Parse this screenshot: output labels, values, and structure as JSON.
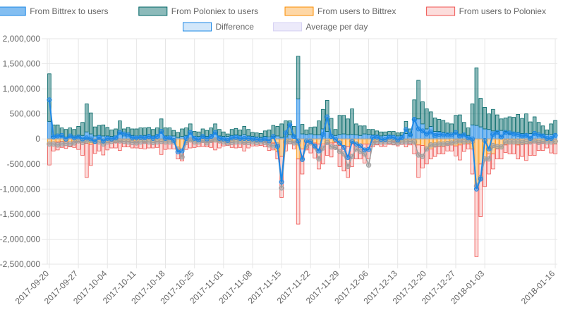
{
  "chart_data": {
    "type": "bar",
    "stacked": true,
    "legend_position": "top",
    "grid": true,
    "ylim": [
      -2500000,
      2000000
    ],
    "y_ticks": [
      2000000,
      1500000,
      1000000,
      500000,
      0,
      -500000,
      -1000000,
      -1500000,
      -2000000,
      -2500000
    ],
    "y_tick_labels": [
      "2,000,000",
      "1,500,000",
      "1,000,000",
      "500,000",
      "0",
      "-500,000",
      "-1,000,000",
      "-1,500,000",
      "-2,000,000",
      "-2,500,000"
    ],
    "x_tick_labels": [
      "2017-09-20",
      "2017-09-27",
      "2017-10-04",
      "2017-10-11",
      "2017-10-18",
      "2017-10-25",
      "2017-11-01",
      "2017-11-08",
      "2017-11-15",
      "2017-11-22",
      "2017-11-29",
      "2017-12-06",
      "2017-12-13",
      "2017-12-20",
      "2017-12-27",
      "2018-01-03",
      "2018-01-16"
    ],
    "start_date": "2017-09-20",
    "series": [
      {
        "name": "From Bittrex to users",
        "type": "bar",
        "color": "#1e88e5",
        "values": [
          350000,
          50000,
          60000,
          50000,
          40000,
          50000,
          40000,
          60000,
          70000,
          140000,
          100000,
          60000,
          70000,
          60000,
          60000,
          50000,
          60000,
          110000,
          60000,
          90000,
          70000,
          60000,
          60000,
          70000,
          80000,
          60000,
          80000,
          120000,
          60000,
          60000,
          60000,
          30000,
          50000,
          70000,
          90000,
          50000,
          50000,
          60000,
          50000,
          80000,
          90000,
          60000,
          50000,
          50000,
          70000,
          80000,
          70000,
          90000,
          60000,
          50000,
          40000,
          30000,
          50000,
          40000,
          50000,
          60000,
          30000,
          40000,
          80000,
          60000,
          800000,
          100000,
          90000,
          100000,
          80000,
          80000,
          200000,
          150000,
          90000,
          70000,
          90000,
          100000,
          80000,
          90000,
          80000,
          70000,
          100000,
          90000,
          80000,
          70000,
          60000,
          70000,
          70000,
          70000,
          60000,
          70000,
          110000,
          60000,
          370000,
          400000,
          300000,
          200000,
          250000,
          150000,
          150000,
          130000,
          110000,
          90000,
          100000,
          90000,
          100000,
          70000,
          280000,
          270000,
          240000,
          200000,
          190000,
          160000,
          150000,
          170000,
          150000,
          100000,
          130000,
          120000,
          110000,
          100000,
          110000,
          100000,
          90000,
          90000,
          90000,
          90000,
          100000
        ]
      },
      {
        "name": "From Poloniex to users",
        "type": "bar",
        "color": "#006666",
        "values": [
          950000,
          230000,
          220000,
          170000,
          150000,
          170000,
          150000,
          190000,
          260000,
          560000,
          420000,
          180000,
          200000,
          220000,
          170000,
          130000,
          140000,
          250000,
          140000,
          140000,
          130000,
          140000,
          160000,
          150000,
          150000,
          130000,
          140000,
          280000,
          160000,
          160000,
          110000,
          100000,
          150000,
          150000,
          210000,
          100000,
          90000,
          140000,
          120000,
          140000,
          210000,
          130000,
          90000,
          50000,
          120000,
          130000,
          110000,
          160000,
          130000,
          80000,
          80000,
          80000,
          110000,
          140000,
          220000,
          190000,
          270000,
          320000,
          280000,
          190000,
          850000,
          190000,
          90000,
          130000,
          160000,
          280000,
          390000,
          620000,
          320000,
          120000,
          380000,
          370000,
          320000,
          510000,
          220000,
          190000,
          160000,
          100000,
          110000,
          90000,
          80000,
          70000,
          80000,
          80000,
          60000,
          60000,
          240000,
          140000,
          410000,
          770000,
          440000,
          400000,
          290000,
          270000,
          240000,
          240000,
          210000,
          210000,
          370000,
          390000,
          230000,
          150000,
          420000,
          1150000,
          570000,
          430000,
          310000,
          430000,
          330000,
          230000,
          270000,
          340000,
          300000,
          370000,
          300000,
          400000,
          230000,
          340000,
          240000,
          170000,
          90000,
          210000,
          270000
        ]
      },
      {
        "name": "From users to Bittrex",
        "type": "bar",
        "color": "#fb8c00",
        "values": [
          -100000,
          -60000,
          -60000,
          -50000,
          -60000,
          -60000,
          -50000,
          -60000,
          -70000,
          -90000,
          -110000,
          -90000,
          -60000,
          -80000,
          -70000,
          -60000,
          -70000,
          -60000,
          -60000,
          -50000,
          -60000,
          -60000,
          -60000,
          -70000,
          -60000,
          -70000,
          -50000,
          -60000,
          -60000,
          -60000,
          -60000,
          -200000,
          -200000,
          -70000,
          -60000,
          -60000,
          -60000,
          -50000,
          -60000,
          -50000,
          -60000,
          -60000,
          -60000,
          -70000,
          -60000,
          -60000,
          -60000,
          -80000,
          -60000,
          -60000,
          -60000,
          -60000,
          -60000,
          -80000,
          -80000,
          -250000,
          -350000,
          -60000,
          -60000,
          -60000,
          -400000,
          -200000,
          -70000,
          -80000,
          -80000,
          -100000,
          -100000,
          -80000,
          -80000,
          -70000,
          -130000,
          -140000,
          -150000,
          -100000,
          -100000,
          -100000,
          -100000,
          -100000,
          -60000,
          -50000,
          -60000,
          -60000,
          -50000,
          -50000,
          -60000,
          -60000,
          -60000,
          -60000,
          -100000,
          -120000,
          -130000,
          -200000,
          -200000,
          -150000,
          -150000,
          -150000,
          -120000,
          -120000,
          -140000,
          -120000,
          -100000,
          -100000,
          -200000,
          -900000,
          -500000,
          -400000,
          -300000,
          -300000,
          -200000,
          -200000,
          -120000,
          -100000,
          -100000,
          -120000,
          -100000,
          -100000,
          -80000,
          -80000,
          -80000,
          -80000,
          -60000,
          -60000,
          -100000
        ]
      },
      {
        "name": "From users to Poloniex",
        "type": "bar",
        "color": "#ef5350",
        "values": [
          -420000,
          -180000,
          -160000,
          -120000,
          -130000,
          -100000,
          -120000,
          -150000,
          -260000,
          -680000,
          -420000,
          -200000,
          -180000,
          -240000,
          -150000,
          -120000,
          -110000,
          -170000,
          -100000,
          -110000,
          -120000,
          -120000,
          -130000,
          -130000,
          -120000,
          -110000,
          -120000,
          -250000,
          -150000,
          -140000,
          -140000,
          -200000,
          -240000,
          -140000,
          -120000,
          -110000,
          -100000,
          -100000,
          -100000,
          -120000,
          -160000,
          -120000,
          -80000,
          -60000,
          -110000,
          -120000,
          -110000,
          -160000,
          -120000,
          -80000,
          -80000,
          -70000,
          -100000,
          -150000,
          -140000,
          -150000,
          -820000,
          -180000,
          -40000,
          -140000,
          -1300000,
          -500000,
          -150000,
          -200000,
          -300000,
          -500000,
          -400000,
          -250000,
          -280000,
          -130000,
          -420000,
          -500000,
          -620000,
          -450000,
          -300000,
          -300000,
          -380000,
          -300000,
          -100000,
          -70000,
          -90000,
          -90000,
          -60000,
          -70000,
          -80000,
          -50000,
          -100000,
          -60000,
          -200000,
          -650000,
          -450000,
          -300000,
          -200000,
          -200000,
          -150000,
          -150000,
          -120000,
          -120000,
          -200000,
          -300000,
          -150000,
          -100000,
          -500000,
          -1450000,
          -1050000,
          -550000,
          -400000,
          -300000,
          -200000,
          -200000,
          -150000,
          -200000,
          -200000,
          -280000,
          -250000,
          -330000,
          -250000,
          -250000,
          -150000,
          -150000,
          -120000,
          -220000,
          -200000
        ]
      },
      {
        "name": "Difference",
        "type": "line",
        "color": "#1e88e5",
        "values": [
          780000,
          40000,
          60000,
          70000,
          0,
          60000,
          20000,
          40000,
          0,
          20000,
          0,
          -50000,
          30000,
          -40000,
          10000,
          0,
          20000,
          130000,
          100000,
          80000,
          20000,
          20000,
          30000,
          20000,
          50000,
          10000,
          50000,
          150000,
          10000,
          20000,
          -30000,
          -260000,
          -240000,
          10000,
          130000,
          10000,
          -20000,
          50000,
          0,
          50000,
          130000,
          10000,
          0,
          -30000,
          20000,
          30000,
          10000,
          10000,
          10000,
          0,
          -10000,
          -20000,
          0,
          -40000,
          50000,
          -150000,
          -860000,
          120000,
          280000,
          50000,
          -40000,
          -410000,
          -40000,
          -50000,
          -140000,
          -240000,
          90000,
          440000,
          50000,
          -10000,
          -80000,
          -170000,
          -370000,
          -50000,
          -100000,
          -140000,
          -220000,
          -210000,
          30000,
          40000,
          -10000,
          -10000,
          40000,
          30000,
          -20000,
          20000,
          190000,
          80000,
          390000,
          200000,
          160000,
          100000,
          140000,
          70000,
          90000,
          80000,
          80000,
          80000,
          130000,
          60000,
          80000,
          20000,
          0,
          -1000000,
          -800000,
          -30000,
          -200000,
          90000,
          130000,
          40000,
          130000,
          120000,
          100000,
          90000,
          60000,
          70000,
          10000,
          110000,
          80000,
          60000,
          10000,
          10000,
          70000
        ]
      },
      {
        "name": "Average per day",
        "type": "line",
        "color": "#9e9e9e",
        "values": [
          -100000,
          -100000,
          -120000,
          -100000,
          -90000,
          -100000,
          -80000,
          -40000,
          -70000,
          -40000,
          -30000,
          -50000,
          -60000,
          -100000,
          -60000,
          -50000,
          -40000,
          -40000,
          -50000,
          -60000,
          -70000,
          -80000,
          -60000,
          -50000,
          -60000,
          -70000,
          -60000,
          -50000,
          -60000,
          -60000,
          -60000,
          -200000,
          -360000,
          -70000,
          -20000,
          -60000,
          -60000,
          -30000,
          -80000,
          -30000,
          -20000,
          -40000,
          -60000,
          -80000,
          -70000,
          -60000,
          -60000,
          -70000,
          -70000,
          -60000,
          -70000,
          -60000,
          -70000,
          -120000,
          -140000,
          -120000,
          -980000,
          -60000,
          -50000,
          -80000,
          -80000,
          -400000,
          -150000,
          -80000,
          -160000,
          -400000,
          -180000,
          -70000,
          -160000,
          -170000,
          -250000,
          -300000,
          -550000,
          -350000,
          -200000,
          -250000,
          -300000,
          -520000,
          -80000,
          -60000,
          -60000,
          -60000,
          -50000,
          -70000,
          -80000,
          -60000,
          -60000,
          -50000,
          -60000,
          -320000,
          -350000,
          -200000,
          -120000,
          -120000,
          -100000,
          -100000,
          -90000,
          -80000,
          -60000,
          -40000,
          -60000,
          -40000,
          -50000,
          -940000,
          -770000,
          -400000,
          -400000,
          -130000,
          -150000,
          -160000,
          -60000,
          -60000,
          -60000,
          -60000,
          -70000,
          -50000,
          -60000,
          -40000,
          -70000,
          -50000,
          -60000,
          -60000,
          -50000
        ]
      }
    ]
  },
  "colors": {
    "grid": "#e6e6e6",
    "zero_line": "#b0b0b0",
    "axis_text": "#666666"
  }
}
